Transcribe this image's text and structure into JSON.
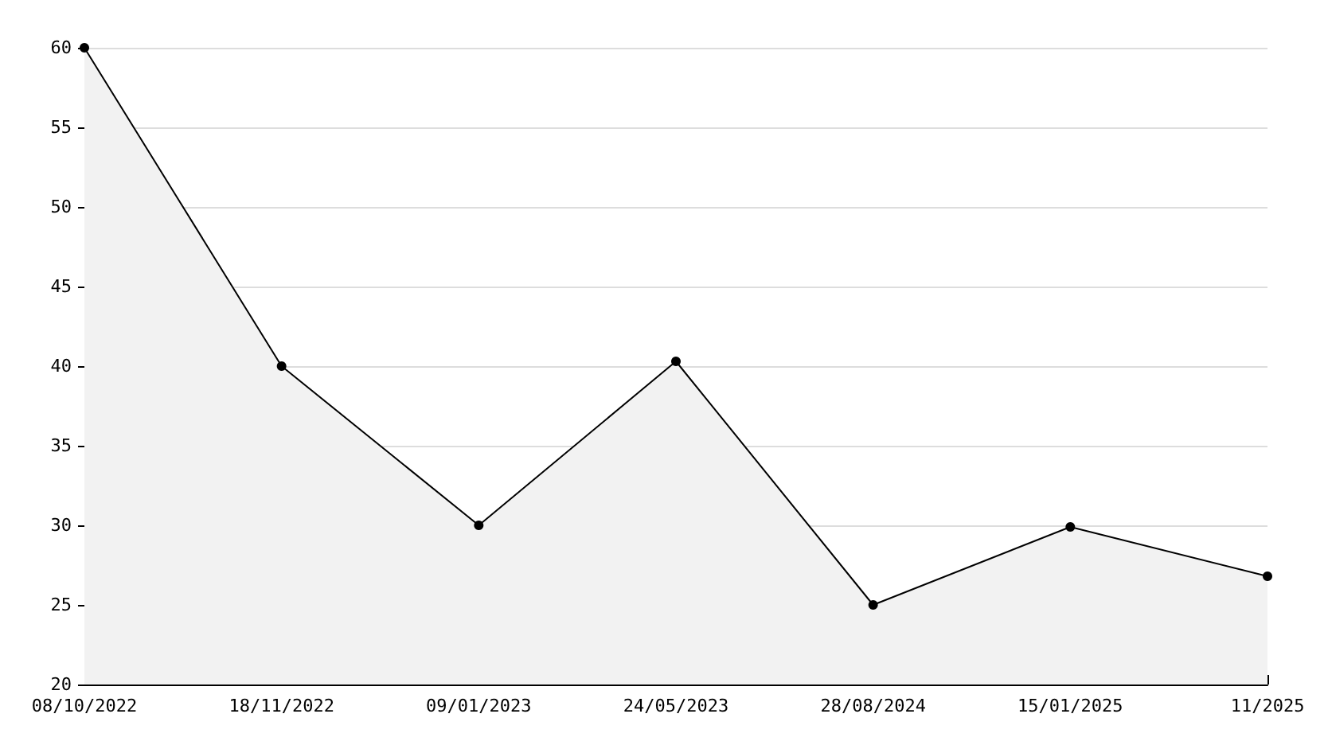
{
  "chart_data": {
    "type": "area",
    "categories": [
      "08/10/2022",
      "18/11/2022",
      "09/01/2023",
      "24/05/2023",
      "28/08/2024",
      "15/01/2025",
      "11/2025"
    ],
    "series": [
      {
        "color": "#000000",
        "values": [
          60,
          40,
          30,
          40.3,
          25,
          29.9,
          26.8
        ]
      }
    ],
    "ylim": [
      20,
      60
    ],
    "yticks": [
      20,
      25,
      30,
      35,
      40,
      45,
      50,
      55,
      60
    ],
    "grid": "y",
    "marker": "circle",
    "line_style": "solid"
  }
}
